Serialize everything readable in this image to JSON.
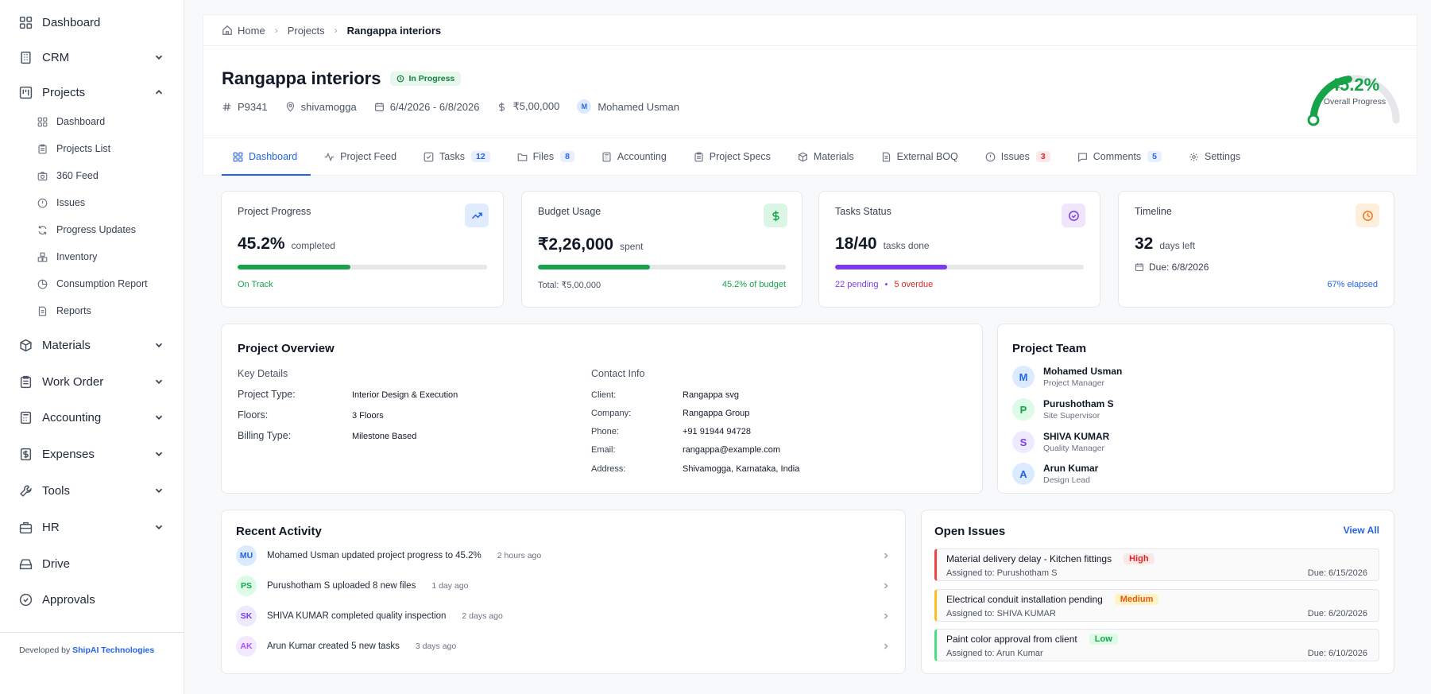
{
  "sidebar": {
    "items": [
      {
        "label": "Dashboard"
      },
      {
        "label": "CRM"
      },
      {
        "label": "Projects"
      },
      {
        "label": "Materials"
      },
      {
        "label": "Work Order"
      },
      {
        "label": "Accounting"
      },
      {
        "label": "Expenses"
      },
      {
        "label": "Tools"
      },
      {
        "label": "HR"
      },
      {
        "label": "Drive"
      },
      {
        "label": "Approvals"
      }
    ],
    "project_subitems": [
      {
        "label": "Dashboard"
      },
      {
        "label": "Projects List"
      },
      {
        "label": "360 Feed"
      },
      {
        "label": "Issues"
      },
      {
        "label": "Progress Updates"
      },
      {
        "label": "Inventory"
      },
      {
        "label": "Consumption Report"
      },
      {
        "label": "Reports"
      }
    ],
    "footer": {
      "prefix": "Developed by",
      "brand": "ShipAI Technologies"
    }
  },
  "breadcrumb": {
    "home": "Home",
    "projects": "Projects",
    "current": "Rangappa interiors"
  },
  "project": {
    "title": "Rangappa interiors",
    "status": "In Progress",
    "code": "P9341",
    "location": "shivamogga",
    "dates": "6/4/2026 - 6/8/2026",
    "budget": "₹5,00,000",
    "manager_initial": "M",
    "manager": "Mohamed Usman"
  },
  "gauge": {
    "value": "45.2%",
    "fraction": 0.452,
    "label": "Overall Progress"
  },
  "tabs": [
    {
      "label": "Dashboard",
      "count": ""
    },
    {
      "label": "Project Feed",
      "count": ""
    },
    {
      "label": "Tasks",
      "count": "12"
    },
    {
      "label": "Files",
      "count": "8"
    },
    {
      "label": "Accounting",
      "count": ""
    },
    {
      "label": "Project Specs",
      "count": ""
    },
    {
      "label": "Materials",
      "count": ""
    },
    {
      "label": "External BOQ",
      "count": ""
    },
    {
      "label": "Issues",
      "count": "3"
    },
    {
      "label": "Comments",
      "count": "5"
    },
    {
      "label": "Settings",
      "count": ""
    }
  ],
  "stats": {
    "progress": {
      "title": "Project Progress",
      "value": "45.2%",
      "unit": "completed",
      "fraction": 0.452,
      "note": "On Track"
    },
    "budget": {
      "title": "Budget Usage",
      "value": "₹2,26,000",
      "unit": "spent",
      "fraction": 0.452,
      "total": "Total: ₹5,00,000",
      "pct": "45.2% of budget"
    },
    "tasks": {
      "title": "Tasks Status",
      "value": "18/40",
      "unit": "tasks done",
      "fraction": 0.45,
      "pending": "22 pending",
      "dot": "•",
      "overdue": "5 overdue"
    },
    "timeline": {
      "title": "Timeline",
      "value": "32",
      "unit": "days left",
      "due": "Due: 6/8/2026",
      "elapsed": "67% elapsed"
    }
  },
  "overview": {
    "title": "Project Overview",
    "key_title": "Key Details",
    "key": [
      {
        "label": "Project Type:",
        "value": "Interior Design & Execution"
      },
      {
        "label": "Floors:",
        "value": "3 Floors"
      },
      {
        "label": "Billing Type:",
        "value": "Milestone Based"
      }
    ],
    "contact_title": "Contact Info",
    "contact": [
      {
        "label": "Client:",
        "value": "Rangappa svg"
      },
      {
        "label": "Company:",
        "value": "Rangappa Group"
      },
      {
        "label": "Phone:",
        "value": "+91 91944 94728"
      },
      {
        "label": "Email:",
        "value": "rangappa@example.com"
      },
      {
        "label": "Address:",
        "value": "Shivamogga, Karnataka, India"
      }
    ]
  },
  "team": {
    "title": "Project Team",
    "members": [
      {
        "initial": "M",
        "name": "Mohamed Usman",
        "role": "Project Manager"
      },
      {
        "initial": "P",
        "name": "Purushotham S",
        "role": "Site Supervisor"
      },
      {
        "initial": "S",
        "name": "SHIVA KUMAR",
        "role": "Quality Manager"
      },
      {
        "initial": "A",
        "name": "Arun Kumar",
        "role": "Design Lead"
      }
    ]
  },
  "activity": {
    "title": "Recent Activity",
    "items": [
      {
        "initials": "MU",
        "text": "Mohamed Usman updated project progress to 45.2%",
        "time": "2 hours ago"
      },
      {
        "initials": "PS",
        "text": "Purushotham S uploaded 8 new files",
        "time": "1 day ago"
      },
      {
        "initials": "SK",
        "text": "SHIVA KUMAR completed quality inspection",
        "time": "2 days ago"
      },
      {
        "initials": "AK",
        "text": "Arun Kumar created 5 new tasks",
        "time": "3 days ago"
      }
    ]
  },
  "issues": {
    "title": "Open Issues",
    "view_all": "View All",
    "items": [
      {
        "title": "Material delivery delay - Kitchen fittings",
        "priority": "High",
        "assigned": "Assigned to: Purushotham S",
        "due": "Due: 6/15/2026"
      },
      {
        "title": "Electrical conduit installation pending",
        "priority": "Medium",
        "assigned": "Assigned to: SHIVA KUMAR",
        "due": "Due: 6/20/2026"
      },
      {
        "title": "Paint color approval from client",
        "priority": "Low",
        "assigned": "Assigned to: Arun Kumar",
        "due": "Due: 6/10/2026"
      }
    ]
  },
  "colors": {
    "accent": "#2563eb",
    "success": "#16a34a",
    "purple": "#7c3aed",
    "danger": "#dc2626",
    "warning": "#f97316"
  }
}
